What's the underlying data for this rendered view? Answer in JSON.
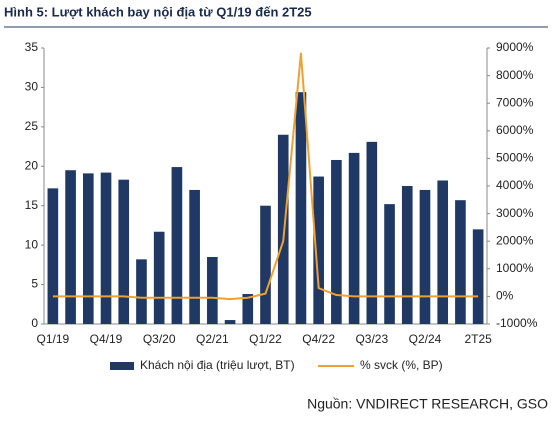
{
  "chart_data": {
    "type": "bar-line",
    "title": "Hình 5: Lượt khách bay nội địa từ Q1/19 đến 2T25",
    "source": "Nguồn: VNDIRECT RESEARCH, GSO",
    "categories": [
      "Q1/19",
      null,
      null,
      "Q4/19",
      null,
      null,
      "Q3/20",
      null,
      null,
      "Q2/21",
      null,
      null,
      "Q1/22",
      null,
      null,
      "Q4/22",
      null,
      null,
      "Q3/23",
      null,
      null,
      "Q2/24",
      null,
      null,
      "2T25"
    ],
    "series": [
      {
        "name": "Khách nội địa (triệu lượt, BT)",
        "color": "#1f3864",
        "kind": "bar",
        "values": [
          17.2,
          19.5,
          19.1,
          19.2,
          18.3,
          8.2,
          11.7,
          19.9,
          17.0,
          8.5,
          0.5,
          3.8,
          15.0,
          24.0,
          29.4,
          18.7,
          20.8,
          21.7,
          23.1,
          15.2,
          17.5,
          17.0,
          18.2,
          15.7,
          12.0
        ]
      },
      {
        "name": "% svck (%, BP)",
        "color": "#f0a030",
        "kind": "line",
        "axis": "y2",
        "values": [
          0,
          0,
          0,
          0,
          0,
          -50,
          -50,
          -50,
          -50,
          -50,
          -100,
          -50,
          100,
          2000,
          8800,
          300,
          50,
          0,
          0,
          0,
          0,
          0,
          0,
          0,
          0
        ]
      }
    ],
    "ylim": [
      0,
      35
    ],
    "yticks": [
      0,
      5,
      10,
      15,
      20,
      25,
      30,
      35
    ],
    "y2lim": [
      -1000,
      9000
    ],
    "y2ticks": [
      {
        "value": -1000,
        "label": "-1000%"
      },
      {
        "value": 0,
        "label": "0%"
      },
      {
        "value": 1000,
        "label": "1000%"
      },
      {
        "value": 2000,
        "label": "2000%"
      },
      {
        "value": 3000,
        "label": "3000%"
      },
      {
        "value": 4000,
        "label": "4000%"
      },
      {
        "value": 5000,
        "label": "5000%"
      },
      {
        "value": 6000,
        "label": "6000%"
      },
      {
        "value": 7000,
        "label": "7000%"
      },
      {
        "value": 8000,
        "label": "8000%"
      },
      {
        "value": 9000,
        "label": "9000%"
      }
    ]
  }
}
